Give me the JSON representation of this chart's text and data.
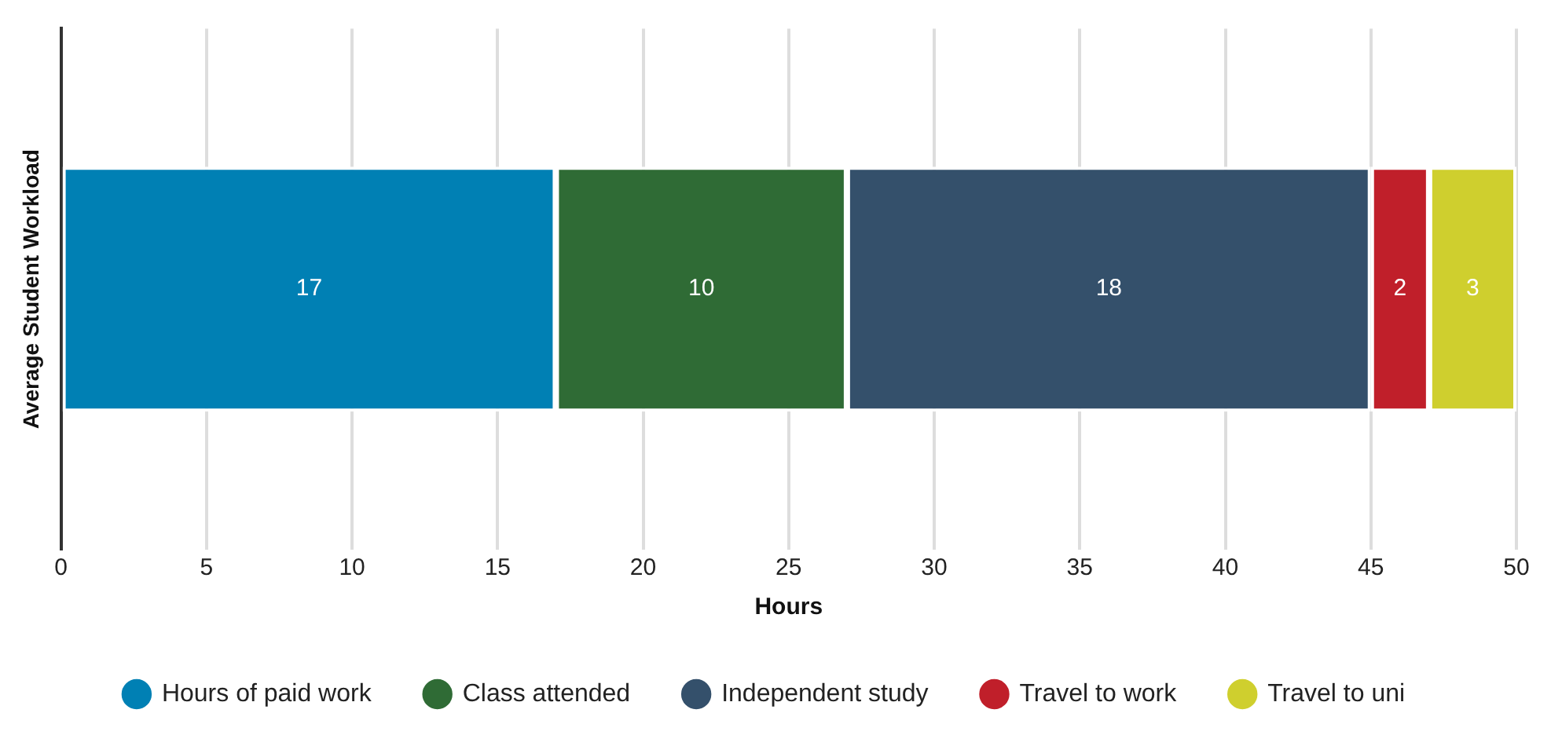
{
  "chart_data": {
    "type": "bar",
    "orientation": "horizontal",
    "stacked": true,
    "categories": [
      null
    ],
    "ylabel": "Average Student Workload",
    "xlabel": "Hours",
    "xlim": [
      0,
      50
    ],
    "xticks": [
      0,
      5,
      10,
      15,
      20,
      25,
      30,
      35,
      40,
      45,
      50
    ],
    "grid": "x",
    "legend": "bottom",
    "data_labels": true,
    "series": [
      {
        "name": "Hours of paid work",
        "color": "#0080b4",
        "values": [
          17
        ]
      },
      {
        "name": "Class attended",
        "color": "#2f6b35",
        "values": [
          10
        ]
      },
      {
        "name": "Independent study",
        "color": "#34506b",
        "values": [
          18
        ]
      },
      {
        "name": "Travel to work",
        "color": "#c01f2a",
        "values": [
          2
        ]
      },
      {
        "name": "Travel to uni",
        "color": "#cfcf2e",
        "values": [
          3
        ]
      }
    ]
  }
}
